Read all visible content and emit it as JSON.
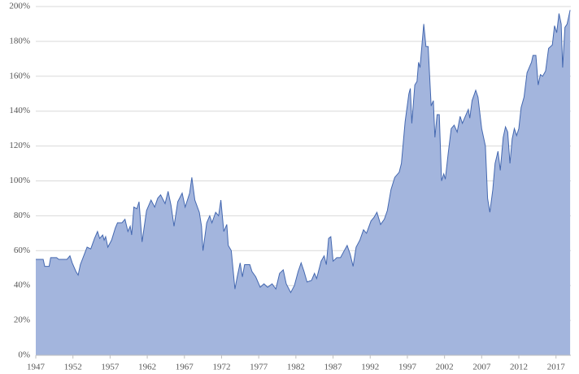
{
  "chart_data": {
    "type": "area",
    "x": [
      1947.0,
      1948.0,
      1948.2,
      1948.8,
      1949.0,
      1949.8,
      1950.1,
      1951.2,
      1951.6,
      1951.9,
      1952.4,
      1952.7,
      1953.0,
      1953.9,
      1954.4,
      1954.9,
      1955.3,
      1955.6,
      1956.0,
      1956.2,
      1956.4,
      1956.7,
      1957.2,
      1957.7,
      1958.0,
      1958.6,
      1959.0,
      1959.4,
      1959.7,
      1959.9,
      1960.2,
      1960.6,
      1960.9,
      1961.3,
      1961.9,
      1962.5,
      1963.0,
      1963.4,
      1963.8,
      1964.4,
      1964.8,
      1965.2,
      1965.6,
      1966.1,
      1966.7,
      1967.1,
      1967.7,
      1968.0,
      1968.4,
      1969.0,
      1969.3,
      1969.5,
      1970.0,
      1970.4,
      1970.7,
      1971.2,
      1971.6,
      1971.9,
      1972.3,
      1972.7,
      1972.9,
      1973.3,
      1973.8,
      1974.1,
      1974.5,
      1974.8,
      1975.1,
      1975.8,
      1976.1,
      1976.6,
      1977.2,
      1977.7,
      1978.2,
      1978.8,
      1979.3,
      1979.8,
      1980.3,
      1980.7,
      1981.3,
      1981.8,
      1982.3,
      1982.7,
      1983.1,
      1983.5,
      1984.1,
      1984.5,
      1984.8,
      1985.4,
      1985.8,
      1986.1,
      1986.4,
      1986.7,
      1987.0,
      1987.5,
      1988.0,
      1988.5,
      1988.9,
      1989.3,
      1989.7,
      1990.1,
      1990.6,
      1991.1,
      1991.5,
      1992.1,
      1992.5,
      1992.9,
      1993.4,
      1993.9,
      1994.3,
      1994.8,
      1995.3,
      1995.9,
      1996.2,
      1996.7,
      1997.2,
      1997.4,
      1997.6,
      1998.0,
      1998.3,
      1998.5,
      1998.7,
      1999.2,
      1999.5,
      1999.8,
      2000.2,
      2000.5,
      2000.7,
      2001.0,
      2001.3,
      2001.6,
      2001.9,
      2002.1,
      2002.5,
      2002.9,
      2003.3,
      2003.7,
      2004.1,
      2004.4,
      2004.8,
      2005.2,
      2005.4,
      2005.7,
      2006.2,
      2006.5,
      2007.0,
      2007.5,
      2007.8,
      2008.1,
      2008.5,
      2008.8,
      2009.2,
      2009.5,
      2009.9,
      2010.2,
      2010.5,
      2010.8,
      2011.1,
      2011.4,
      2011.7,
      2012.0,
      2012.3,
      2012.7,
      2013.1,
      2013.5,
      2013.7,
      2013.9,
      2014.3,
      2014.6,
      2014.9,
      2015.2,
      2015.6,
      2016.0,
      2016.5,
      2016.8,
      2017.1,
      2017.4,
      2017.7,
      2017.9,
      2018.2,
      2018.5,
      2018.9
    ],
    "values": [
      55,
      55,
      51,
      51,
      56,
      56,
      55,
      55,
      57,
      53,
      48,
      46,
      52,
      62,
      61,
      67,
      71,
      67,
      69,
      66,
      68,
      62,
      66,
      73,
      76,
      76,
      78,
      71,
      74,
      69,
      85,
      84,
      88,
      65,
      83,
      89,
      85,
      90,
      92,
      87,
      94,
      86,
      74,
      88,
      93,
      85,
      93,
      102,
      89,
      82,
      74,
      60,
      76,
      80,
      76,
      82,
      80,
      89,
      71,
      75,
      63,
      60,
      38,
      45,
      53,
      45,
      52,
      52,
      48,
      45,
      39,
      41,
      39,
      41,
      38,
      47,
      49,
      41,
      36,
      40,
      48,
      53,
      48,
      42,
      43,
      47,
      44,
      54,
      57,
      52,
      67,
      68,
      54,
      56,
      56,
      60,
      63,
      58,
      51,
      62,
      66,
      72,
      70,
      77,
      79,
      82,
      75,
      78,
      83,
      95,
      102,
      105,
      110,
      134,
      150,
      153,
      133,
      155,
      157,
      168,
      165,
      190,
      177,
      177,
      143,
      146,
      125,
      138,
      138,
      100,
      104,
      101,
      116,
      130,
      132,
      128,
      137,
      133,
      137,
      141,
      136,
      146,
      152,
      148,
      130,
      120,
      90,
      82,
      95,
      110,
      117,
      106,
      125,
      131,
      128,
      110,
      124,
      130,
      126,
      130,
      142,
      148,
      162,
      166,
      168,
      172,
      172,
      155,
      161,
      160,
      163,
      176,
      178,
      189,
      185,
      196,
      190,
      165,
      188,
      190,
      198
    ],
    "color": "#a3b5dd",
    "edge_color": "#4468b0",
    "xlim": [
      1947,
      2019
    ],
    "xticks": [
      1947,
      1952,
      1957,
      1962,
      1967,
      1972,
      1977,
      1982,
      1987,
      1992,
      1997,
      2002,
      2007,
      2012,
      2017
    ],
    "ylim": [
      0,
      200
    ],
    "yticks": [
      {
        "value": 0,
        "label": "0%"
      },
      {
        "value": 20,
        "label": "20%"
      },
      {
        "value": 40,
        "label": "40%"
      },
      {
        "value": 60,
        "label": "60%"
      },
      {
        "value": 80,
        "label": "80%"
      },
      {
        "value": 100,
        "label": "100%"
      },
      {
        "value": 120,
        "label": "120%"
      },
      {
        "value": 140,
        "label": "140%"
      },
      {
        "value": 160,
        "label": "160%"
      },
      {
        "value": 180,
        "label": "180%"
      },
      {
        "value": 200,
        "label": "200%"
      }
    ],
    "grid": true
  }
}
